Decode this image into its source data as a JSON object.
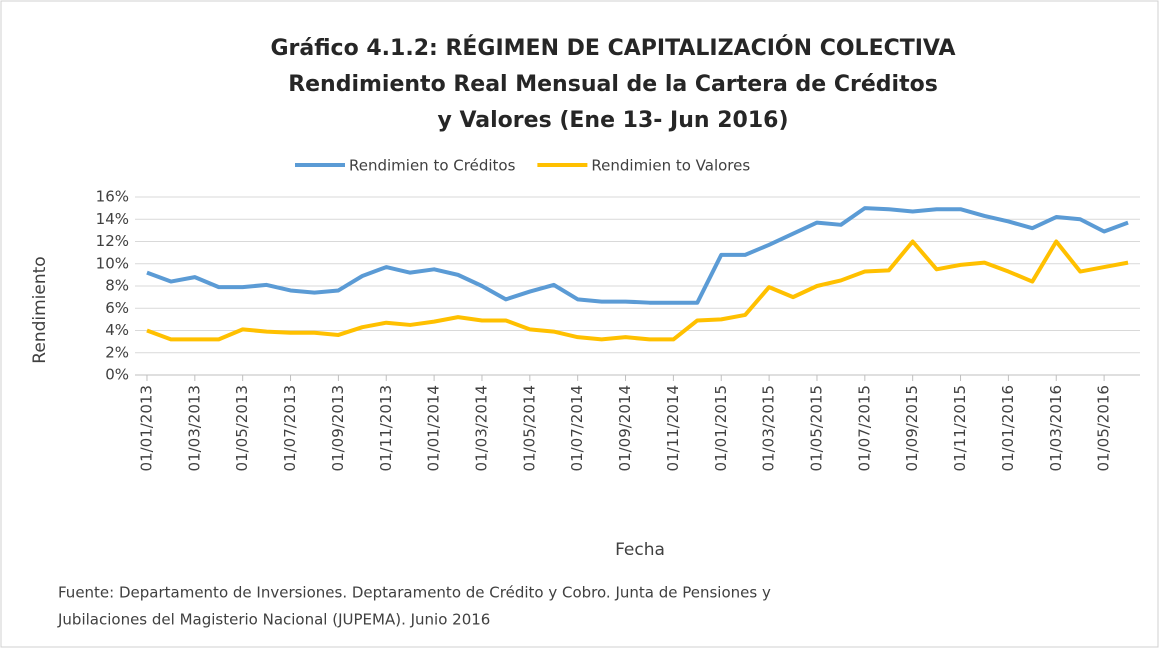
{
  "chart_data": {
    "type": "line",
    "title": [
      "Gráfico 4.1.2: RÉGIMEN DE CAPITALIZACIÓN COLECTIVA",
      "Rendimiento Real Mensual  de la Cartera de Créditos",
      "y Valores (Ene 13- Jun 2016)"
    ],
    "y_label": "Rendimiento",
    "x_label": "Fecha",
    "source": [
      "Fuente: Departamento de Inversiones. Deptaramento de Crédito y Cobro. Junta de Pensiones y",
      "Jubilaciones del Magisterio Nacional (JUPEMA). Junio 2016"
    ],
    "categories": [
      "01/01/2013",
      null,
      "01/03/2013",
      null,
      "01/05/2013",
      null,
      "01/07/2013",
      null,
      "01/09/2013",
      null,
      "01/11/2013",
      null,
      "01/01/2014",
      null,
      "01/03/2014",
      null,
      "01/05/2014",
      null,
      "01/07/2014",
      null,
      "01/09/2014",
      null,
      "01/11/2014",
      null,
      "01/01/2015",
      null,
      "01/03/2015",
      null,
      "01/05/2015",
      null,
      "01/07/2015",
      null,
      "01/09/2015",
      null,
      "01/11/2015",
      null,
      "01/01/2016",
      null,
      "01/03/2016",
      null,
      "01/05/2016",
      null
    ],
    "series": [
      {
        "name": "Rendimien to Créditos",
        "color": "#5b9bd5",
        "values": [
          9.2,
          8.4,
          8.8,
          7.9,
          7.9,
          8.1,
          7.6,
          7.4,
          7.6,
          8.9,
          9.7,
          9.2,
          9.5,
          9.0,
          8.0,
          6.8,
          7.5,
          8.1,
          6.8,
          6.6,
          6.6,
          6.5,
          6.5,
          6.5,
          10.8,
          10.8,
          11.7,
          12.7,
          13.7,
          13.5,
          15.0,
          14.9,
          14.7,
          14.9,
          14.9,
          14.3,
          13.8,
          13.2,
          14.2,
          14.0,
          12.9,
          13.7
        ]
      },
      {
        "name": "Rendimien to Valores",
        "color": "#ffc000",
        "values": [
          4.0,
          3.2,
          3.2,
          3.2,
          4.1,
          3.9,
          3.8,
          3.8,
          3.6,
          4.3,
          4.7,
          4.5,
          4.8,
          5.2,
          4.9,
          4.9,
          4.1,
          3.9,
          3.4,
          3.2,
          3.4,
          3.2,
          3.2,
          4.9,
          5.0,
          5.4,
          7.9,
          7.0,
          8.0,
          8.5,
          9.3,
          9.4,
          12.0,
          9.5,
          9.9,
          10.1,
          9.3,
          8.4,
          12.0,
          9.3,
          9.7,
          10.1
        ]
      }
    ],
    "ylim": [
      0,
      16
    ],
    "yticks": [
      {
        "value": 0,
        "label": "0%"
      },
      {
        "value": 2,
        "label": "2%"
      },
      {
        "value": 4,
        "label": "4%"
      },
      {
        "value": 6,
        "label": "6%"
      },
      {
        "value": 8,
        "label": "8%"
      },
      {
        "value": 10,
        "label": "10%"
      },
      {
        "value": 12,
        "label": "12%"
      },
      {
        "value": 14,
        "label": "14%"
      },
      {
        "value": 16,
        "label": "16%"
      }
    ],
    "grid": true,
    "legend": "top"
  }
}
